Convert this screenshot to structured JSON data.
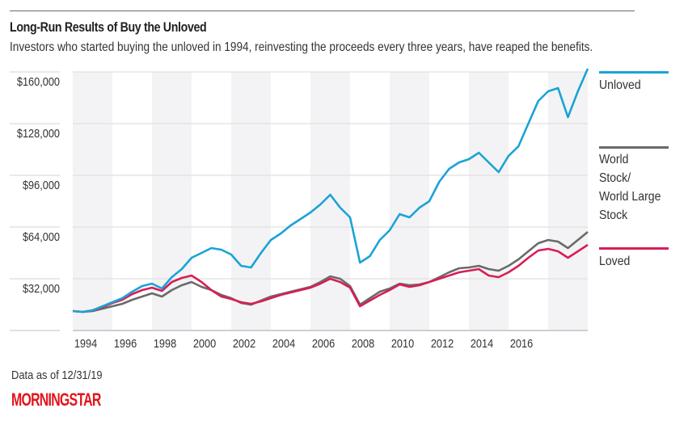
{
  "header": {
    "title": "Long-Run Results of Buy the Unloved",
    "subtitle": "Investors who started buying the unloved in 1994, reinvesting the proceeds every three years, have reaped the benefits."
  },
  "footer": {
    "note": "Data as of 12/31/19",
    "logo_text": "MORNINGSTAR",
    "logo_color": "#e3141b"
  },
  "chart_data": {
    "type": "line",
    "title": "Long-Run Results of Buy the Unloved",
    "subtitle": "Investors who started buying the unloved in 1994, reinvesting the proceeds every three years, have reaped the benefits.",
    "xlabel": "",
    "ylabel": "",
    "xlim": [
      1994.0,
      2020.0
    ],
    "ylim": [
      0,
      162000
    ],
    "yticks": [
      {
        "value": 32000,
        "label": "$32,000"
      },
      {
        "value": 64000,
        "label": "$64,000"
      },
      {
        "value": 96000,
        "label": "$96,000"
      },
      {
        "value": 128000,
        "label": "$128,000"
      },
      {
        "value": 160000,
        "label": "$160,000"
      }
    ],
    "xticks": [
      {
        "value": 1994,
        "label": "1994"
      },
      {
        "value": 1996,
        "label": "1996"
      },
      {
        "value": 1998,
        "label": "1998"
      },
      {
        "value": 2000,
        "label": "2000"
      },
      {
        "value": 2002,
        "label": "2002"
      },
      {
        "value": 2004,
        "label": "2004"
      },
      {
        "value": 2006,
        "label": "2006"
      },
      {
        "value": 2008,
        "label": "2008"
      },
      {
        "value": 2010,
        "label": "2010"
      },
      {
        "value": 2012,
        "label": "2012"
      },
      {
        "value": 2014,
        "label": "2014"
      },
      {
        "value": 2016,
        "label": "2016"
      }
    ],
    "grid": true,
    "shaded_bands_every_years": 2,
    "legend_placement": "right",
    "x": [
      1994.0,
      1994.5,
      1995.0,
      1995.5,
      1996.0,
      1996.5,
      1997.0,
      1997.5,
      1998.0,
      1998.5,
      1999.0,
      1999.5,
      2000.0,
      2000.5,
      2001.0,
      2001.5,
      2002.0,
      2002.5,
      2003.0,
      2003.5,
      2004.0,
      2004.5,
      2005.0,
      2005.5,
      2006.0,
      2006.5,
      2007.0,
      2007.5,
      2008.0,
      2008.5,
      2009.0,
      2009.5,
      2010.0,
      2010.5,
      2011.0,
      2011.5,
      2012.0,
      2012.5,
      2013.0,
      2013.5,
      2014.0,
      2014.5,
      2015.0,
      2015.5,
      2016.0,
      2016.5,
      2017.0,
      2017.5,
      2018.0,
      2018.5,
      2019.0,
      2019.5,
      2020.0
    ],
    "series": [
      {
        "name": "Unloved",
        "color": "#1aa3d6",
        "values": [
          12000,
          11500,
          12500,
          15000,
          17500,
          20000,
          24000,
          27500,
          29000,
          26000,
          33000,
          38000,
          45000,
          48000,
          51000,
          50000,
          47000,
          40000,
          39000,
          48000,
          56000,
          60000,
          65000,
          69000,
          73000,
          78000,
          84000,
          76000,
          70000,
          42000,
          46000,
          56000,
          62000,
          72000,
          70000,
          76000,
          80000,
          92000,
          100000,
          104000,
          106000,
          110000,
          104000,
          98000,
          108000,
          114000,
          128000,
          142000,
          148000,
          150000,
          132000,
          148000,
          162000
        ]
      },
      {
        "name": "World Stock/ World Large Stock",
        "color": "#6a6a6a",
        "values": [
          12000,
          11500,
          12000,
          13500,
          15000,
          16500,
          19000,
          21000,
          23000,
          21000,
          25000,
          28000,
          30000,
          27000,
          25000,
          22000,
          20000,
          17000,
          16000,
          18500,
          21000,
          22500,
          24000,
          25500,
          27000,
          30000,
          33500,
          32000,
          27500,
          16000,
          20000,
          24000,
          26000,
          29000,
          28000,
          28500,
          30000,
          33000,
          36000,
          38500,
          39000,
          40000,
          38000,
          37000,
          40000,
          44000,
          49000,
          54000,
          56000,
          55000,
          51000,
          56000,
          61000
        ]
      },
      {
        "name": "Loved",
        "color": "#d81e55",
        "values": [
          12000,
          11500,
          12500,
          14500,
          17000,
          19000,
          22500,
          25000,
          26500,
          24500,
          30000,
          32500,
          34000,
          30000,
          25000,
          21000,
          19500,
          17500,
          16500,
          18000,
          20000,
          22000,
          23500,
          25000,
          26500,
          29000,
          32000,
          30000,
          26500,
          15000,
          18500,
          22000,
          25000,
          28500,
          27000,
          28000,
          30000,
          32000,
          34000,
          36000,
          37000,
          38000,
          34000,
          33000,
          36000,
          40000,
          45000,
          49500,
          50500,
          49000,
          45000,
          49000,
          53000
        ]
      }
    ]
  },
  "legend": [
    {
      "label": "Unloved",
      "color": "#1aa3d6"
    },
    {
      "label": "World Stock/ World Large Stock",
      "lines": [
        "World",
        "Stock/",
        "World Large",
        "Stock"
      ],
      "color": "#6a6a6a"
    },
    {
      "label": "Loved",
      "color": "#d81e55"
    }
  ]
}
